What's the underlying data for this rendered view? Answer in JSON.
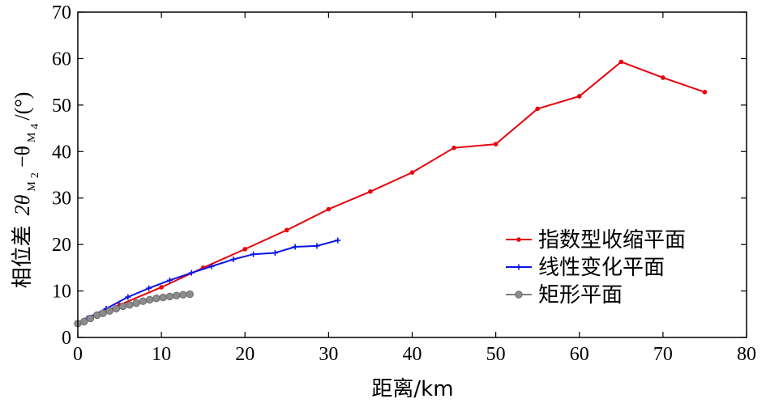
{
  "chart_data": {
    "type": "line",
    "xlabel": "距离/km",
    "ylabel": {
      "prefix": "相位差",
      "main": "2θ",
      "sub1": "M",
      "sub1_index": "2",
      "minus": "−θ",
      "sub2": "M",
      "sub2_index": "4",
      "unit": "/(°)"
    },
    "xlim": [
      0,
      80
    ],
    "ylim": [
      0,
      70
    ],
    "xticks": [
      0,
      10,
      20,
      30,
      40,
      50,
      60,
      70,
      80
    ],
    "yticks": [
      0,
      10,
      20,
      30,
      40,
      50,
      60,
      70
    ],
    "grid": false,
    "legend_position": "center-right",
    "series": [
      {
        "name": "指数型收缩平面",
        "color": "#e8000b",
        "marker": "dot",
        "x": [
          0,
          5,
          10,
          15,
          20,
          25,
          30,
          35,
          40,
          45,
          50,
          55,
          60,
          65,
          70,
          75
        ],
        "y": [
          3,
          7,
          10.8,
          15,
          19,
          23.1,
          27.6,
          31.4,
          35.5,
          40.8,
          41.6,
          49.2,
          51.9,
          59.3,
          55.9,
          52.8
        ]
      },
      {
        "name": "线性变化平面",
        "color": "#0a14e6",
        "marker": "plus",
        "x": [
          0,
          1.1,
          3.4,
          6,
          8.5,
          11,
          13.6,
          16,
          18.6,
          21,
          23.6,
          26,
          28.6,
          31.1
        ],
        "y": [
          3,
          4.1,
          6.2,
          8.7,
          10.6,
          12.3,
          13.9,
          15.3,
          16.8,
          17.9,
          18.2,
          19.5,
          19.7,
          20.9
        ]
      },
      {
        "name": "矩形平面",
        "color": "#808080",
        "marker": "circle",
        "x": [
          0,
          0.75,
          1.5,
          2.3,
          3,
          3.8,
          4.6,
          5.4,
          6.2,
          7,
          7.8,
          8.6,
          9.4,
          10.2,
          11,
          11.8,
          12.6,
          13.4
        ],
        "y": [
          3,
          3.4,
          4.1,
          4.8,
          5.2,
          5.7,
          6.2,
          6.7,
          7.0,
          7.4,
          7.8,
          8.1,
          8.4,
          8.6,
          8.8,
          9.0,
          9.2,
          9.3
        ]
      }
    ]
  }
}
